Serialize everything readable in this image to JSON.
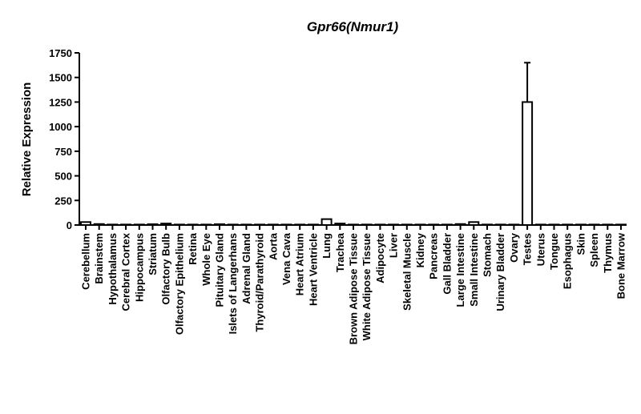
{
  "chart_data": {
    "type": "bar",
    "title": "Gpr66(Nmur1)",
    "xlabel": "",
    "ylabel": "Relative Expression",
    "ylim": [
      0,
      1750
    ],
    "yticks": [
      0,
      250,
      500,
      750,
      1000,
      1250,
      1500,
      1750
    ],
    "grid": false,
    "categories": [
      "Cerebellum",
      "Brainstem",
      "Hypothalamus",
      "Cerebral Cortex",
      "Hippocampus",
      "Striatum",
      "Olfactory Bulb",
      "Olfactory Epithelium",
      "Retina",
      "Whole Eye",
      "Pituitary Gland",
      "Islets of Langerhans",
      "Adrenal Gland",
      "Thyroid/Parathyroid",
      "Aorta",
      "Vena Cava",
      "Heart Atrium",
      "Heart Ventricle",
      "Lung",
      "Trachea",
      "Brown Adipose Tissue",
      "White Adipose Tissue",
      "Adipocyte",
      "Liver",
      "Skeletal Muscle",
      "Kidney",
      "Pancreas",
      "Gall Bladder",
      "Large Intestine",
      "Small Intestine",
      "Stomach",
      "Urinary Bladder",
      "Ovary",
      "Testes",
      "Uterus",
      "Tongue",
      "Esophagus",
      "Skin",
      "Spleen",
      "Thymus",
      "Bone Marrow"
    ],
    "values": [
      30,
      10,
      5,
      5,
      5,
      8,
      15,
      3,
      3,
      4,
      8,
      2,
      1,
      1,
      1,
      1,
      1,
      1,
      60,
      15,
      2,
      5,
      1,
      1,
      1,
      1,
      1,
      3,
      10,
      30,
      5,
      5,
      1,
      1250,
      1,
      1,
      1,
      1,
      1,
      1,
      1
    ],
    "error_upper": [
      0,
      0,
      0,
      0,
      0,
      0,
      0,
      0,
      0,
      0,
      0,
      0,
      0,
      0,
      0,
      0,
      0,
      0,
      0,
      0,
      0,
      0,
      0,
      0,
      0,
      0,
      0,
      0,
      0,
      0,
      0,
      0,
      0,
      400,
      0,
      0,
      0,
      0,
      0,
      0,
      0
    ]
  }
}
